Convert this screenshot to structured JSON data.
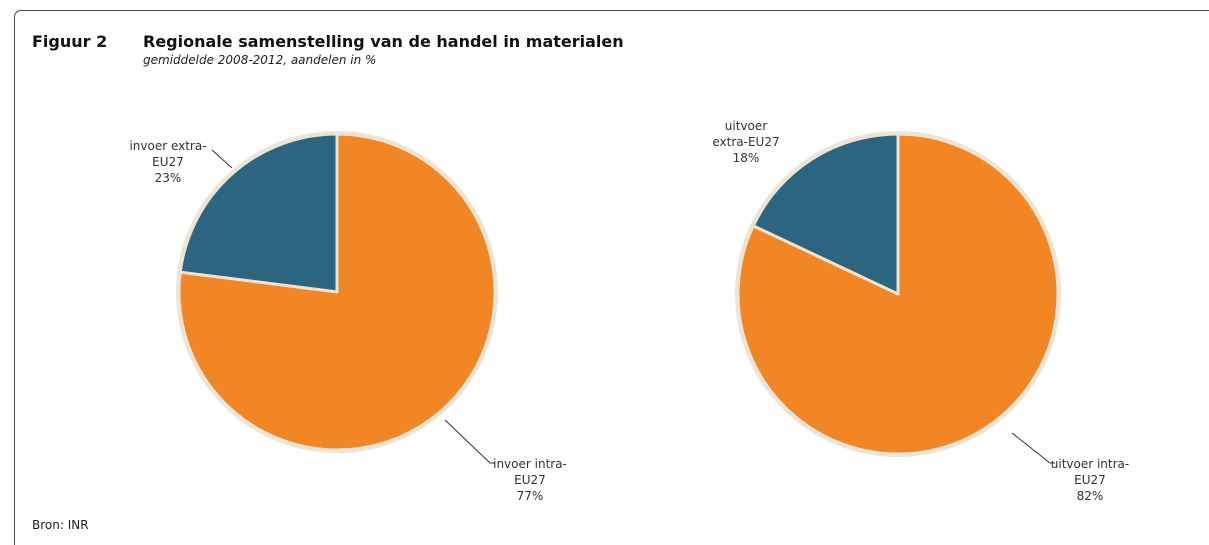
{
  "figure": {
    "label": "Figuur 2",
    "title": "Regionale samenstelling van de handel in materialen",
    "subtitle": "gemiddelde 2008-2012, aandelen in %",
    "source": "Bron: INR"
  },
  "colors": {
    "orange": "#f28624",
    "blue": "#2c6580",
    "rim": "#ece5d6",
    "leader": "#333333"
  },
  "chart_data": [
    {
      "type": "pie",
      "title": "",
      "slices": [
        {
          "label_lines": [
            "invoer extra-",
            "EU27",
            "23%"
          ],
          "value": 23,
          "color": "#2c6580"
        },
        {
          "label_lines": [
            "invoer intra-",
            "EU27",
            "77%"
          ],
          "value": 77,
          "color": "#f28624"
        }
      ]
    },
    {
      "type": "pie",
      "title": "",
      "slices": [
        {
          "label_lines": [
            "uitvoer",
            "extra-EU27",
            "18%"
          ],
          "value": 18,
          "color": "#2c6580"
        },
        {
          "label_lines": [
            "uitvoer intra-",
            "EU27",
            "82%"
          ],
          "value": 82,
          "color": "#f28624"
        }
      ]
    }
  ]
}
